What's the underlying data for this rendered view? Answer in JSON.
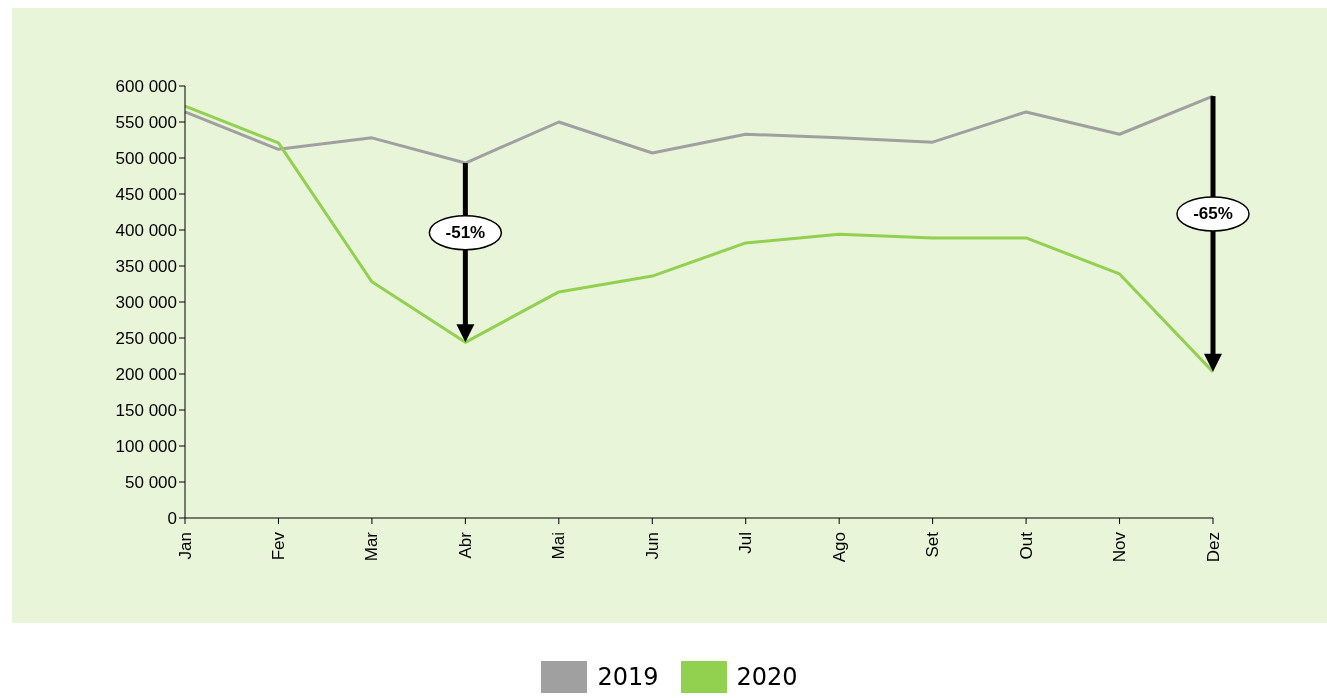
{
  "chart_data": {
    "type": "line",
    "categories": [
      "Jan",
      "Fev",
      "Mar",
      "Abr",
      "Mai",
      "Jun",
      "Jul",
      "Ago",
      "Set",
      "Out",
      "Nov",
      "Dez"
    ],
    "series": [
      {
        "name": "2019",
        "color": "#a0a0a0",
        "values": [
          564000,
          512000,
          528000,
          493000,
          550000,
          507000,
          533000,
          528000,
          522000,
          564000,
          533000,
          586000
        ]
      },
      {
        "name": "2020",
        "color": "#92d050",
        "values": [
          572000,
          521000,
          328000,
          244000,
          314000,
          336000,
          382000,
          394000,
          389000,
          389000,
          339000,
          203000
        ]
      }
    ],
    "ylim": [
      0,
      600000
    ],
    "yticks": [
      {
        "value": 0,
        "label": "0"
      },
      {
        "value": 50000,
        "label": "50 000"
      },
      {
        "value": 100000,
        "label": "100 000"
      },
      {
        "value": 150000,
        "label": "150 000"
      },
      {
        "value": 200000,
        "label": "200 000"
      },
      {
        "value": 250000,
        "label": "250 000"
      },
      {
        "value": 300000,
        "label": "300 000"
      },
      {
        "value": 350000,
        "label": "350 000"
      },
      {
        "value": 400000,
        "label": "400 000"
      },
      {
        "value": 450000,
        "label": "450 000"
      },
      {
        "value": 500000,
        "label": "500 000"
      },
      {
        "value": 550000,
        "label": "550 000"
      },
      {
        "value": 600000,
        "label": "600 000"
      }
    ],
    "annotations": [
      {
        "text": "-51%",
        "x": "Abr",
        "y": 493000
      },
      {
        "text": "-65%",
        "x": "Dez",
        "y": 586000
      }
    ],
    "grid": false,
    "legend": "bottom",
    "marker": "none",
    "line_style": "solid"
  }
}
